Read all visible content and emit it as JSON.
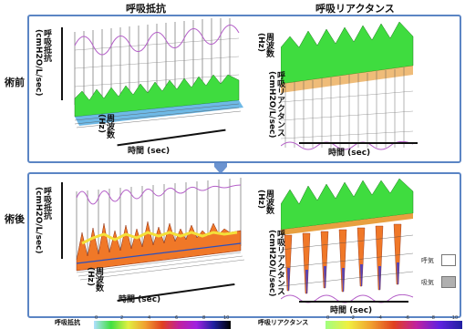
{
  "headers": {
    "resistance": "呼吸抵抗",
    "reactance": "呼吸リアクタンス"
  },
  "rows": {
    "pre": "術前",
    "post": "術後"
  },
  "axes": {
    "resistance_unit": "呼吸抵抗 (cmH2O/L/sec)",
    "reactance_unit": "呼吸リアクタンス (cmH2O/L/sec)",
    "frequency": "周波数 (Hz)",
    "time": "時間 (sec)"
  },
  "legend": {
    "expiration": "呼気",
    "inspiration": "吸気"
  },
  "colorbars": {
    "resistance": {
      "label": "呼吸抵抗",
      "ticks": [
        "0",
        "2",
        "4",
        "6",
        "8",
        "10"
      ]
    },
    "reactance": {
      "label": "呼吸リアクタンス",
      "ticks": [
        "0",
        "-2",
        "-4",
        "-6",
        "-8",
        "-10"
      ]
    }
  },
  "colors": {
    "panel_border": "#5b85c4",
    "arrow": "#6b93d0",
    "surface_green": "#3fdc3f",
    "surface_purple": "#b45fc8"
  }
}
